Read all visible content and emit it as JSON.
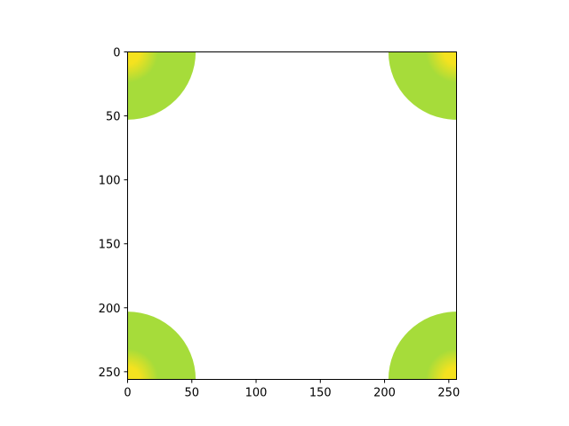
{
  "chart_data": {
    "type": "heatmap",
    "title": "",
    "xlabel": "",
    "ylabel": "",
    "image_size": [
      256,
      256
    ],
    "xlim": [
      0,
      256
    ],
    "ylim": [
      256,
      0
    ],
    "y_axis_inverted": true,
    "xticks": [
      0,
      50,
      100,
      150,
      200,
      250
    ],
    "yticks": [
      0,
      50,
      100,
      150,
      200,
      250
    ],
    "xtick_labels": [
      "0",
      "50",
      "100",
      "150",
      "200",
      "250"
    ],
    "ytick_labels": [
      "0",
      "50",
      "100",
      "150",
      "200",
      "250"
    ],
    "grid": false,
    "background_value": "masked (white)",
    "fill_color": "#a6dc3a",
    "peak_color": "#f5e21f",
    "regions": [
      {
        "corner": "top-left",
        "center": [
          0,
          0
        ],
        "radius": 53
      },
      {
        "corner": "top-right",
        "center": [
          256,
          0
        ],
        "radius": 53
      },
      {
        "corner": "bottom-left",
        "center": [
          0,
          256
        ],
        "radius": 53
      },
      {
        "corner": "bottom-right",
        "center": [
          256,
          256
        ],
        "radius": 53
      }
    ]
  }
}
